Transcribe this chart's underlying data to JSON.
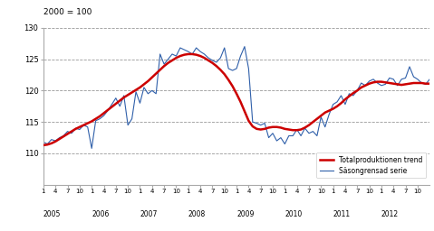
{
  "title_above": "2000 = 100",
  "ylim": [
    105,
    130
  ],
  "yticks": [
    110,
    115,
    120,
    125,
    130
  ],
  "legend_entries": [
    "Totalproduktionen trend",
    "Säsongrensad serie"
  ],
  "trend_color": "#cc0000",
  "seasonal_color": "#3060aa",
  "trend_linewidth": 1.8,
  "seasonal_linewidth": 0.8,
  "background_color": "#ffffff",
  "grid_color": "#000000",
  "grid_linestyle": "--",
  "grid_alpha": 0.4,
  "trend_data": [
    111.3,
    111.4,
    111.6,
    111.9,
    112.3,
    112.7,
    113.1,
    113.5,
    113.9,
    114.2,
    114.5,
    114.8,
    115.1,
    115.5,
    115.9,
    116.4,
    116.9,
    117.4,
    117.9,
    118.4,
    118.9,
    119.3,
    119.7,
    120.1,
    120.5,
    121.0,
    121.5,
    122.1,
    122.7,
    123.3,
    123.9,
    124.4,
    124.8,
    125.2,
    125.5,
    125.7,
    125.8,
    125.8,
    125.7,
    125.5,
    125.2,
    124.8,
    124.4,
    123.9,
    123.3,
    122.6,
    121.7,
    120.7,
    119.5,
    118.2,
    116.7,
    115.2,
    114.3,
    113.9,
    113.8,
    113.9,
    114.1,
    114.2,
    114.2,
    114.1,
    113.9,
    113.8,
    113.7,
    113.7,
    113.8,
    114.1,
    114.5,
    115.0,
    115.5,
    116.0,
    116.5,
    116.8,
    117.1,
    117.5,
    118.0,
    118.6,
    119.1,
    119.6,
    120.0,
    120.5,
    120.8,
    121.1,
    121.3,
    121.4,
    121.4,
    121.3,
    121.2,
    121.1,
    121.0,
    120.9,
    121.0,
    121.1,
    121.2,
    121.2,
    121.2,
    121.1,
    121.1
  ],
  "seasonal_data": [
    111.8,
    111.5,
    112.2,
    112.0,
    112.5,
    112.8,
    113.5,
    113.2,
    114.0,
    113.8,
    114.5,
    114.2,
    110.8,
    115.2,
    115.5,
    116.0,
    116.8,
    117.8,
    118.8,
    117.5,
    119.2,
    114.5,
    115.5,
    119.8,
    118.0,
    120.5,
    119.5,
    120.0,
    119.5,
    125.8,
    124.2,
    125.0,
    125.8,
    125.5,
    126.8,
    126.5,
    126.2,
    125.8,
    126.8,
    126.2,
    125.8,
    125.2,
    124.8,
    124.5,
    125.2,
    126.8,
    123.5,
    123.2,
    123.5,
    125.5,
    127.0,
    123.5,
    115.0,
    114.8,
    114.5,
    114.8,
    112.5,
    113.2,
    112.0,
    112.5,
    111.5,
    112.8,
    112.8,
    113.8,
    112.8,
    114.0,
    113.2,
    113.5,
    112.8,
    115.8,
    114.2,
    116.2,
    117.8,
    118.2,
    119.2,
    117.8,
    119.5,
    119.2,
    120.0,
    121.2,
    120.8,
    121.5,
    121.8,
    121.2,
    120.8,
    121.0,
    122.0,
    121.8,
    120.8,
    121.8,
    122.0,
    123.8,
    122.2,
    121.8,
    121.2,
    121.0,
    121.8
  ],
  "n_years": 8,
  "start_year": 2005
}
